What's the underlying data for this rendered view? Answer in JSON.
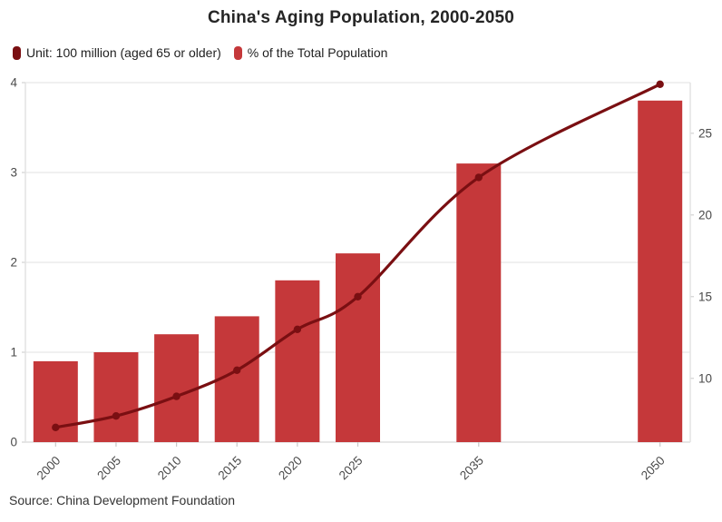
{
  "title": "China's Aging Population, 2000-2050",
  "source": "Source: China Development Foundation",
  "legend": [
    {
      "label": "Unit: 100 million (aged 65 or older)",
      "color": "#7a0f12"
    },
    {
      "label": "% of the Total Population",
      "color": "#c5383a"
    }
  ],
  "chart_data": {
    "type": "bar+line combo",
    "title": "China's Aging Population, 2000-2050",
    "x": [
      2000,
      2005,
      2010,
      2015,
      2020,
      2025,
      2035,
      2050
    ],
    "x_tick_labels": [
      "2000",
      "2005",
      "2010",
      "2015",
      "2020",
      "2025",
      "2035",
      "2050"
    ],
    "series": [
      {
        "name": "Aged 65 or older (100 million)",
        "type": "bar",
        "axis": "left",
        "color": "#c5383a",
        "values": [
          0.9,
          1.0,
          1.2,
          1.4,
          1.8,
          2.1,
          3.1,
          3.8
        ]
      },
      {
        "name": "% of the Total Population",
        "type": "line",
        "axis": "right",
        "color": "#7a0f12",
        "values": [
          7.0,
          7.7,
          8.9,
          10.5,
          13.0,
          15.0,
          22.3,
          28.0
        ]
      }
    ],
    "left_axis": {
      "min": 0,
      "max": 4,
      "ticks": [
        0,
        1,
        2,
        3,
        4
      ]
    },
    "right_axis": {
      "min": 6.1,
      "max": 28.1,
      "ticks": [
        10,
        15,
        20,
        25
      ]
    },
    "x_axis": {
      "year_min": 2000,
      "year_max": 2050,
      "step": 5
    },
    "grid": "horizontal only",
    "legend_position": "top-left",
    "colors": {
      "grid": "#ececec",
      "axis_line": "#e2e2e2",
      "tick_mark": "#c9c9c9",
      "axis_text": "#4a4a4a"
    }
  }
}
